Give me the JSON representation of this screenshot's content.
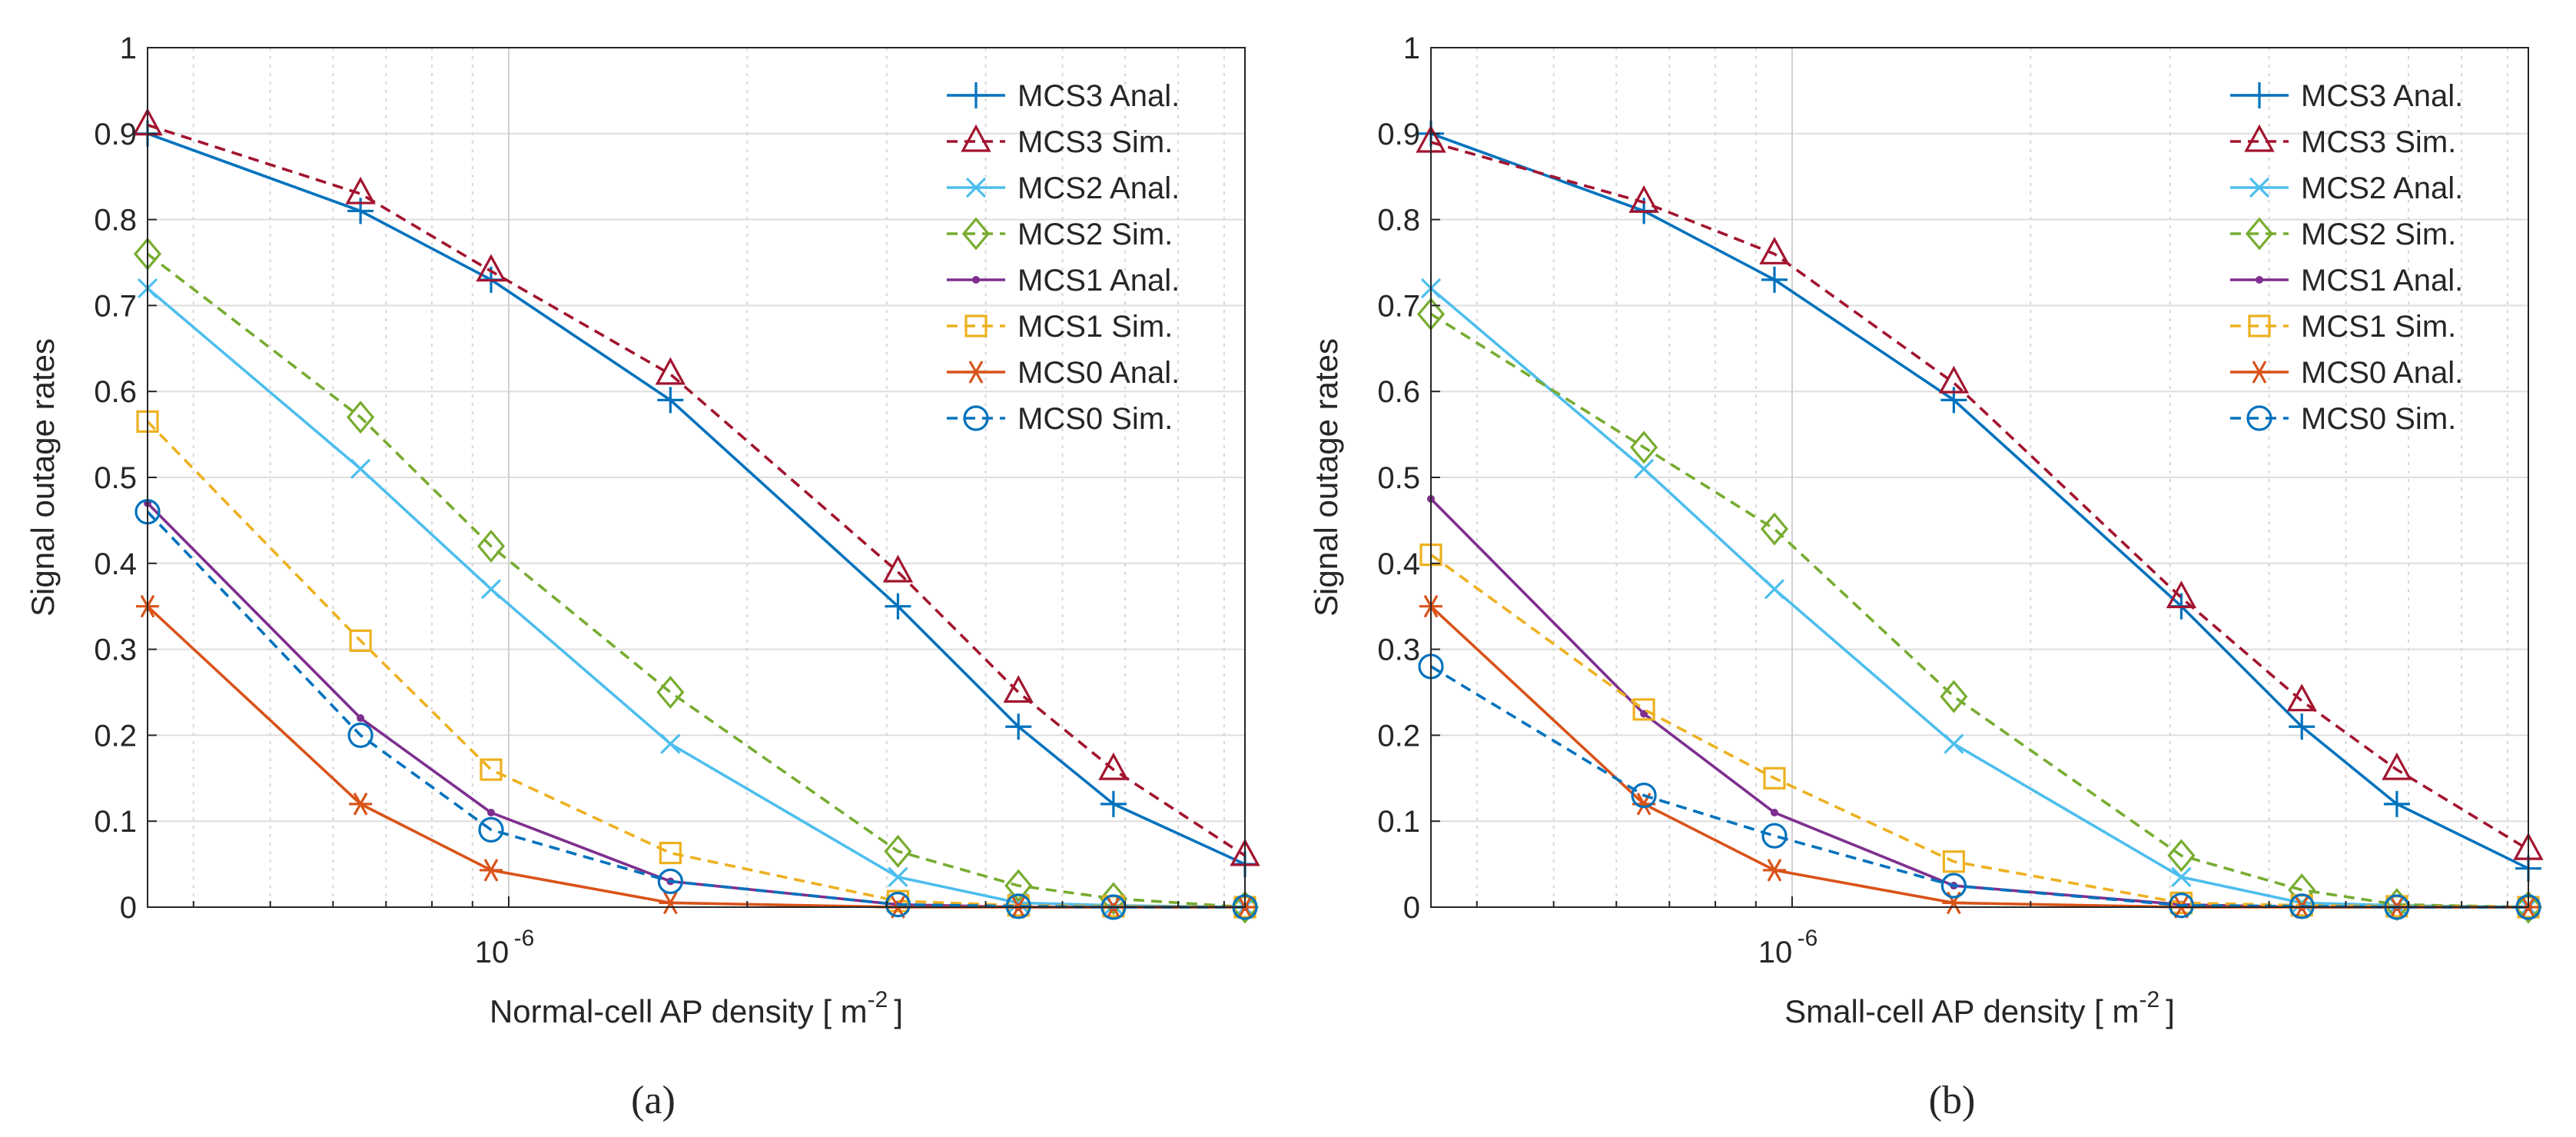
{
  "chart_data": [
    {
      "type": "line",
      "panel": "a",
      "caption": "(a)",
      "xlabel": "Normal-cell AP density [ m",
      "xlabel_sup": "-2",
      "xlabel_tail": "]",
      "ylabel": "Signal outage rates",
      "xscale": "log",
      "xlim": [
        3.5e-07,
        8.5e-06
      ],
      "ylim": [
        0,
        1
      ],
      "x_tick_label": {
        "base": "10",
        "exp": "-6",
        "value": 1e-06
      },
      "y_ticks": [
        "0",
        "0.1",
        "0.2",
        "0.3",
        "0.4",
        "0.5",
        "0.6",
        "0.7",
        "0.8",
        "0.9",
        "1"
      ],
      "grid": true,
      "legend_position": "top-right",
      "x": [
        3.5e-07,
        6.5e-07,
        9.5e-07,
        1.6e-06,
        3.1e-06,
        4.4e-06,
        5.8e-06,
        8.5e-06
      ],
      "series": [
        {
          "name": "MCS3 Anal.",
          "color": "#0072bd",
          "dash": false,
          "marker": "plus",
          "values": [
            0.9,
            0.81,
            0.73,
            0.59,
            0.35,
            0.21,
            0.12,
            0.05
          ]
        },
        {
          "name": "MCS3 Sim.",
          "color": "#a2142f",
          "dash": true,
          "marker": "triangle",
          "values": [
            0.91,
            0.83,
            0.74,
            0.62,
            0.39,
            0.25,
            0.16,
            0.06
          ]
        },
        {
          "name": "MCS2 Anal.",
          "color": "#4dbeee",
          "dash": false,
          "marker": "x",
          "values": [
            0.72,
            0.51,
            0.37,
            0.19,
            0.035,
            0.005,
            0.002,
            0.0
          ]
        },
        {
          "name": "MCS2 Sim.",
          "color": "#77ac30",
          "dash": true,
          "marker": "diamond",
          "values": [
            0.76,
            0.57,
            0.42,
            0.25,
            0.065,
            0.025,
            0.01,
            0.0
          ]
        },
        {
          "name": "MCS1 Anal.",
          "color": "#7e2f8e",
          "dash": false,
          "marker": "dot",
          "values": [
            0.47,
            0.22,
            0.11,
            0.03,
            0.003,
            0.0,
            0.0,
            0.0
          ]
        },
        {
          "name": "MCS1 Sim.",
          "color": "#edb120",
          "dash": true,
          "marker": "square",
          "values": [
            0.565,
            0.31,
            0.16,
            0.063,
            0.007,
            0.002,
            0.001,
            0.0
          ]
        },
        {
          "name": "MCS0 Anal.",
          "color": "#d95319",
          "dash": false,
          "marker": "star",
          "values": [
            0.35,
            0.12,
            0.043,
            0.005,
            0.0,
            0.0,
            0.0,
            0.0
          ]
        },
        {
          "name": "MCS0 Sim.",
          "color": "#0072bd",
          "dash": true,
          "marker": "circle",
          "values": [
            0.46,
            0.2,
            0.09,
            0.03,
            0.003,
            0.001,
            0.0,
            0.0
          ]
        }
      ]
    },
    {
      "type": "line",
      "panel": "b",
      "caption": "(b)",
      "xlabel": "Small-cell AP density [ m",
      "xlabel_sup": "-2",
      "xlabel_tail": "]",
      "ylabel": "Signal outage rates",
      "xscale": "log",
      "xlim": [
        3.5e-07,
        8.5e-06
      ],
      "ylim": [
        0,
        1
      ],
      "x_tick_label": {
        "base": "10",
        "exp": "-6",
        "value": 1e-06
      },
      "y_ticks": [
        "0",
        "0.1",
        "0.2",
        "0.3",
        "0.4",
        "0.5",
        "0.6",
        "0.7",
        "0.8",
        "0.9",
        "1"
      ],
      "grid": true,
      "legend_position": "top-right",
      "x": [
        3.5e-07,
        6.5e-07,
        9.5e-07,
        1.6e-06,
        3.1e-06,
        4.4e-06,
        5.8e-06,
        8.5e-06
      ],
      "series": [
        {
          "name": "MCS3 Anal.",
          "color": "#0072bd",
          "dash": false,
          "marker": "plus",
          "values": [
            0.9,
            0.81,
            0.73,
            0.59,
            0.35,
            0.21,
            0.12,
            0.045
          ]
        },
        {
          "name": "MCS3 Sim.",
          "color": "#a2142f",
          "dash": true,
          "marker": "triangle",
          "values": [
            0.89,
            0.82,
            0.76,
            0.61,
            0.36,
            0.24,
            0.16,
            0.067
          ]
        },
        {
          "name": "MCS2 Anal.",
          "color": "#4dbeee",
          "dash": false,
          "marker": "x",
          "values": [
            0.72,
            0.51,
            0.37,
            0.19,
            0.035,
            0.005,
            0.002,
            0.0
          ]
        },
        {
          "name": "MCS2 Sim.",
          "color": "#77ac30",
          "dash": true,
          "marker": "diamond",
          "values": [
            0.69,
            0.535,
            0.44,
            0.245,
            0.06,
            0.02,
            0.003,
            0.0
          ]
        },
        {
          "name": "MCS1 Anal.",
          "color": "#7e2f8e",
          "dash": false,
          "marker": "dot",
          "values": [
            0.475,
            0.225,
            0.11,
            0.025,
            0.003,
            0.0,
            0.0,
            0.0
          ]
        },
        {
          "name": "MCS1 Sim.",
          "color": "#edb120",
          "dash": true,
          "marker": "square",
          "values": [
            0.41,
            0.23,
            0.15,
            0.053,
            0.005,
            0.002,
            0.001,
            0.0
          ]
        },
        {
          "name": "MCS0 Anal.",
          "color": "#d95319",
          "dash": false,
          "marker": "star",
          "values": [
            0.35,
            0.12,
            0.043,
            0.005,
            0.0,
            0.0,
            0.0,
            0.0
          ]
        },
        {
          "name": "MCS0 Sim.",
          "color": "#0072bd",
          "dash": true,
          "marker": "circle",
          "values": [
            0.28,
            0.13,
            0.083,
            0.025,
            0.002,
            0.001,
            0.0,
            0.0
          ]
        }
      ]
    }
  ]
}
